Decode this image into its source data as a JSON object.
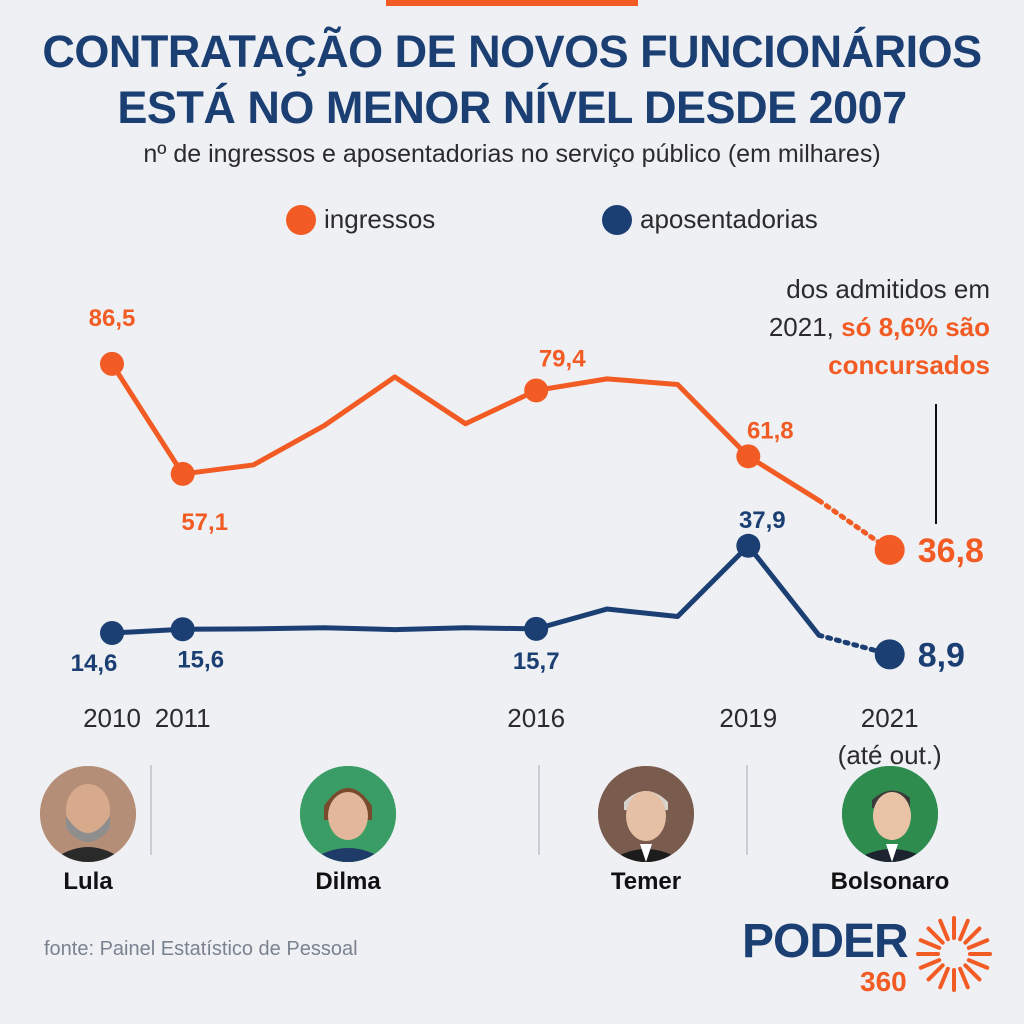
{
  "title_line1": "CONTRATAÇÃO DE NOVOS FUNCIONÁRIOS",
  "title_line2": "ESTÁ NO MENOR NÍVEL DESDE 2007",
  "subtitle": "nº de ingressos e aposentadorias no serviço público (em milhares)",
  "legend": [
    {
      "label": "ingressos",
      "color": "#f25c24"
    },
    {
      "label": "aposentadorias",
      "color": "#1b3f73"
    }
  ],
  "note": {
    "line1": "dos admitidos em",
    "line2_pre": "2021,",
    "line2_hl": "só 8,6% são",
    "line3_hl": "concursados"
  },
  "chart_data": {
    "type": "line",
    "x": [
      2010,
      2011,
      2012,
      2013,
      2014,
      2015,
      2016,
      2017,
      2018,
      2019,
      2020,
      2021
    ],
    "x_tick_labels": [
      {
        "x": 2010,
        "label": "2010"
      },
      {
        "x": 2011,
        "label": "2011"
      },
      {
        "x": 2016,
        "label": "2016"
      },
      {
        "x": 2019,
        "label": "2019"
      },
      {
        "x": 2021,
        "label": "2021",
        "sub": "(até out.)"
      }
    ],
    "series": [
      {
        "name": "ingressos",
        "color": "#f25c24",
        "values": [
          86.5,
          57.1,
          59.5,
          70.0,
          83.0,
          70.5,
          79.4,
          82.5,
          81.0,
          61.8,
          50.0,
          36.8
        ],
        "dotted_from": 2020,
        "labels": [
          {
            "x": 2010,
            "text": "86,5"
          },
          {
            "x": 2011,
            "text": "57,1"
          },
          {
            "x": 2016,
            "text": "79,4"
          },
          {
            "x": 2019,
            "text": "61,8"
          },
          {
            "x": 2021,
            "text": "36,8"
          }
        ]
      },
      {
        "name": "aposentadorias",
        "color": "#1b3f73",
        "values": [
          14.6,
          15.6,
          15.7,
          16.0,
          15.5,
          16.0,
          15.7,
          21.0,
          19.0,
          37.9,
          14.0,
          8.9
        ],
        "dotted_from": 2020,
        "labels": [
          {
            "x": 2010,
            "text": "14,6"
          },
          {
            "x": 2011,
            "text": "15,6"
          },
          {
            "x": 2016,
            "text": "15,7"
          },
          {
            "x": 2019,
            "text": "37,9"
          },
          {
            "x": 2021,
            "text": "8,9"
          }
        ]
      }
    ]
  },
  "presidents": [
    {
      "name": "Lula"
    },
    {
      "name": "Dilma"
    },
    {
      "name": "Temer"
    },
    {
      "name": "Bolsonaro"
    }
  ],
  "source": "fonte: Painel Estatístico de Pessoal",
  "logo": {
    "text": "PODER",
    "sub": "360"
  }
}
